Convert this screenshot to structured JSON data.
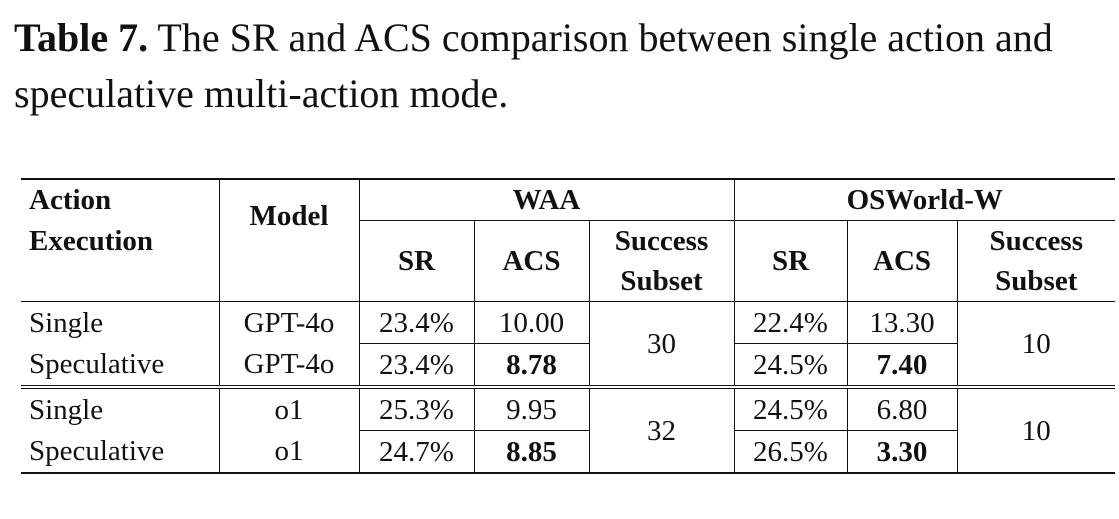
{
  "caption": {
    "label": "Table 7.",
    "text": " The SR and ACS comparison between single action and speculative multi-action mode."
  },
  "table": {
    "headers": {
      "action_execution_line1": "Action",
      "action_execution_line2": "Execution",
      "model": "Model",
      "group_waa": "WAA",
      "group_osworld": "OSWorld-W",
      "sr": "SR",
      "acs": "ACS",
      "success_line1": "Success",
      "success_line2": "Subset"
    },
    "blocks": [
      {
        "rows": [
          {
            "execution": "Single",
            "model": "GPT-4o",
            "waa_sr": "23.4%",
            "waa_acs": "10.00",
            "os_sr": "22.4%",
            "os_acs": "13.30"
          },
          {
            "execution": "Speculative",
            "model": "GPT-4o",
            "waa_sr": "23.4%",
            "waa_acs": "8.78",
            "os_sr": "24.5%",
            "os_acs": "7.40"
          }
        ],
        "waa_success_subset": "30",
        "os_success_subset": "10"
      },
      {
        "rows": [
          {
            "execution": "Single",
            "model": "o1",
            "waa_sr": "25.3%",
            "waa_acs": "9.95",
            "os_sr": "24.5%",
            "os_acs": "6.80"
          },
          {
            "execution": "Speculative",
            "model": "o1",
            "waa_sr": "24.7%",
            "waa_acs": "8.85",
            "os_sr": "26.5%",
            "os_acs": "3.30"
          }
        ],
        "waa_success_subset": "32",
        "os_success_subset": "10"
      }
    ]
  }
}
